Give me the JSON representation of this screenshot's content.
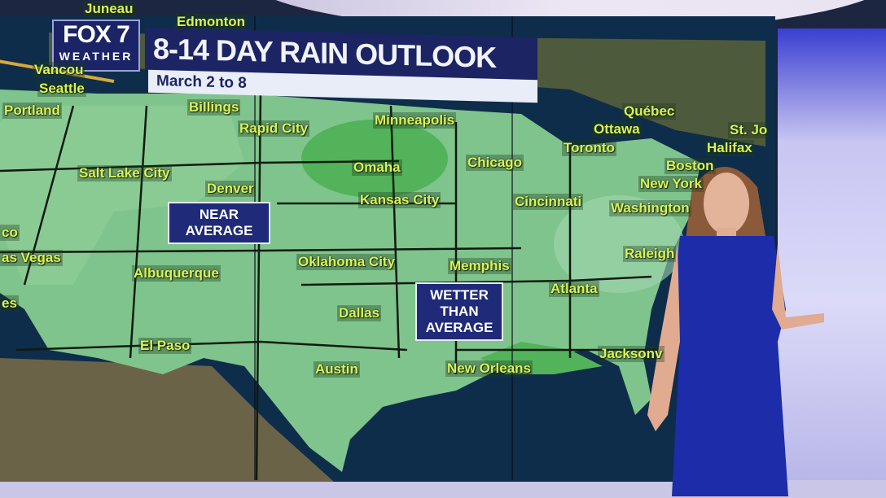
{
  "broadcast": {
    "logo": {
      "station": "FOX 7",
      "subtitle": "WEATHER"
    },
    "title": "8-14 DAY RAIN OUTLOOK",
    "subtitle": "March 2 to 8"
  },
  "map": {
    "colors": {
      "near_average": "#7fc48c",
      "wetter_than_average": "#52b35a",
      "land_outside": "#6b6a4a",
      "water": "#0e2d4a",
      "label_text": "#d8f35a"
    },
    "callouts": [
      {
        "text_line1": "NEAR",
        "text_line2": "AVERAGE"
      },
      {
        "text_line1": "WETTER",
        "text_line2": "THAN",
        "text_line3": "AVERAGE"
      }
    ],
    "cities": [
      "Juneau",
      "Edmonton",
      "Vancou",
      "Seattle",
      "Portland",
      "Billings",
      "Rapid City",
      "Minneapolis",
      "Salt Lake City",
      "Denver",
      "Omaha",
      "Chicago",
      "Kansas City",
      "Cincinnati",
      "Washington",
      "New York",
      "Boston",
      "Halifax",
      "St. Jo",
      "Québec",
      "Ottawa",
      "Toronto",
      "co",
      "as Vegas",
      "es",
      "Albuquerque",
      "Oklahoma City",
      "Memphis",
      "Raleigh",
      "Atlanta",
      "Dallas",
      "El Paso",
      "Austin",
      "New Orleans",
      "Jacksonv"
    ]
  }
}
